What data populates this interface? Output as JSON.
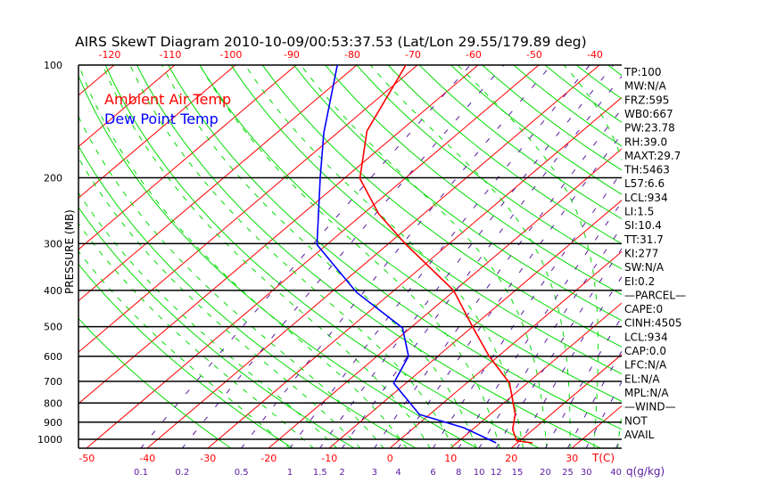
{
  "chart_data": {
    "type": "line",
    "title": "AIRS SkewT Diagram 2010-10-09/00:53:37.53 (Lat/Lon 29.55/179.89 deg)",
    "ylabel": "PRESSURE (MB)",
    "xlabel": "T(C)",
    "mixing_ratio_label": "q(g/kg)",
    "pressure_ticks": [
      100,
      200,
      300,
      400,
      500,
      600,
      700,
      800,
      900,
      1000
    ],
    "bottom_temp_ticks": [
      -50,
      -40,
      -30,
      -20,
      -10,
      0,
      10,
      20,
      30
    ],
    "top_temp_ticks": [
      -120,
      -110,
      -100,
      -90,
      -80,
      -70,
      -60,
      -50,
      -40
    ],
    "mixing_ratio_ticks": [
      0.1,
      0.2,
      0.5,
      1,
      1.5,
      2,
      3,
      4,
      6,
      8,
      10,
      12,
      15,
      20,
      25,
      30,
      40
    ],
    "ylim": [
      1055,
      100
    ],
    "legend": [
      {
        "name": "Ambient Air Temp",
        "color": "#ff0000"
      },
      {
        "name": "Dew Point Temp",
        "color": "#0000ff"
      }
    ],
    "series": [
      {
        "name": "Ambient Air Temp",
        "color": "#ff0000",
        "pressure": [
          1022,
          1010,
          941,
          858,
          708,
          600,
          510,
          400,
          302,
          250,
          201,
          150,
          100
        ],
        "temperature": [
          22.5,
          19.5,
          16.6,
          14.1,
          7.1,
          -1.5,
          -9.1,
          -20.2,
          -36.9,
          -47.4,
          -57.4,
          -65.5,
          -71.9
        ]
      },
      {
        "name": "Dew Point Temp",
        "color": "#0000ff",
        "pressure": [
          1022,
          931,
          858,
          708,
          600,
          504,
          405,
          302,
          200,
          152,
          100
        ],
        "temperature": [
          16.5,
          8.2,
          -1.7,
          -12.0,
          -14.8,
          -21.3,
          -35.8,
          -51.6,
          -64.1,
          -72.2,
          -83.2
        ]
      }
    ],
    "indices": [
      "TP:100",
      "MW:N/A",
      "FRZ:595",
      "WB0:667",
      "PW:23.78",
      "RH:39.0",
      "MAXT:29.7",
      "TH:5463",
      "L57:6.6",
      "LCL:934",
      "LI:1.5",
      "SI:10.4",
      "TT:31.7",
      "KI:277",
      "SW:N/A",
      "EI:0.2",
      "—PARCEL—",
      "CAPE:0",
      "CINH:4505",
      "LCL:934",
      "CAP:0.0",
      "LFC:N/A",
      "EL:N/A",
      "MPL:N/A",
      "—WIND—",
      "NOT",
      "AVAIL"
    ],
    "colors": {
      "isotherm": "#ff0000",
      "dry_adiabat": "#00dd00",
      "moist_adiabat": "#00dd00",
      "mixing_ratio": "#5a1aa0",
      "axis": "#000000"
    }
  }
}
